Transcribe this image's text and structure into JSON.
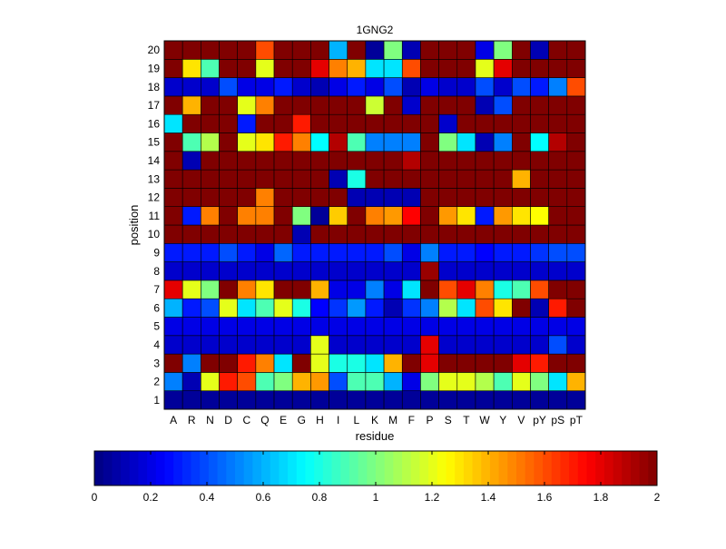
{
  "chart_data": {
    "type": "heatmap",
    "title": "1GNG2",
    "xlabel": "residue",
    "ylabel": "position",
    "x": [
      "A",
      "R",
      "N",
      "D",
      "C",
      "Q",
      "E",
      "G",
      "H",
      "I",
      "L",
      "K",
      "M",
      "F",
      "P",
      "S",
      "T",
      "W",
      "Y",
      "V",
      "pY",
      "pS",
      "pT"
    ],
    "y": [
      1,
      2,
      3,
      4,
      5,
      6,
      7,
      8,
      9,
      10,
      11,
      12,
      13,
      14,
      15,
      16,
      17,
      18,
      19,
      20
    ],
    "value_range": [
      0,
      2
    ],
    "colormap": "jet",
    "colorbar_ticks": [
      "0",
      "0.2",
      "0.4",
      "0.6",
      "0.8",
      "1",
      "1.2",
      "1.4",
      "1.6",
      "1.8",
      "2"
    ],
    "values": [
      [
        0.05,
        0.05,
        0.05,
        0.05,
        0.05,
        0.05,
        0.05,
        0.05,
        0.05,
        0.05,
        0.05,
        0.05,
        0.05,
        0.05,
        0.05,
        0.05,
        0.05,
        0.05,
        0.05,
        0.05,
        0.05,
        0.05,
        0.05
      ],
      [
        0.5,
        0.1,
        1.2,
        1.7,
        1.6,
        0.9,
        1.0,
        1.4,
        1.45,
        0.4,
        0.9,
        0.9,
        0.6,
        0.2,
        1.0,
        1.2,
        1.2,
        1.1,
        0.9,
        1.2,
        1.0,
        0.7,
        1.4
      ],
      [
        2.0,
        0.5,
        2.0,
        2.0,
        1.7,
        1.5,
        0.7,
        2.0,
        1.2,
        0.8,
        0.8,
        0.7,
        1.4,
        2.0,
        1.8,
        2.0,
        2.0,
        2.0,
        2.0,
        1.8,
        1.7,
        2.0,
        2.0
      ],
      [
        0.15,
        0.15,
        0.15,
        0.15,
        0.15,
        0.15,
        0.15,
        0.15,
        1.2,
        0.15,
        0.15,
        0.15,
        0.15,
        0.15,
        1.8,
        0.15,
        0.15,
        0.15,
        0.15,
        0.15,
        0.15,
        0.4,
        0.15
      ],
      [
        0.2,
        0.2,
        0.2,
        0.2,
        0.2,
        0.2,
        0.2,
        0.2,
        0.2,
        0.2,
        0.2,
        0.2,
        0.2,
        0.2,
        0.2,
        0.2,
        0.2,
        0.2,
        0.2,
        0.2,
        0.2,
        0.2,
        0.2
      ],
      [
        0.6,
        0.3,
        0.4,
        1.2,
        0.7,
        0.9,
        1.2,
        0.8,
        0.25,
        0.35,
        0.55,
        0.3,
        0.1,
        0.35,
        0.5,
        1.1,
        0.7,
        1.6,
        1.3,
        2.0,
        0.1,
        1.7,
        2.0
      ],
      [
        1.8,
        1.2,
        1.0,
        2.0,
        1.5,
        1.3,
        2.0,
        2.0,
        1.4,
        0.2,
        0.2,
        0.5,
        0.2,
        0.7,
        2.0,
        1.6,
        1.8,
        1.5,
        0.8,
        0.9,
        1.6,
        2.0,
        2.0
      ],
      [
        0.15,
        0.15,
        0.15,
        0.15,
        0.15,
        0.15,
        0.15,
        0.15,
        0.15,
        0.15,
        0.15,
        0.15,
        0.15,
        0.15,
        1.95,
        0.15,
        0.15,
        0.15,
        0.15,
        0.15,
        0.15,
        0.15,
        0.15
      ],
      [
        0.3,
        0.3,
        0.3,
        0.4,
        0.3,
        0.2,
        0.45,
        0.3,
        0.3,
        0.3,
        0.3,
        0.3,
        0.4,
        0.2,
        0.5,
        0.3,
        0.3,
        0.25,
        0.3,
        0.3,
        0.35,
        0.4,
        0.4
      ],
      [
        2.0,
        2.0,
        2.0,
        2.0,
        2.0,
        2.0,
        2.0,
        0.1,
        2.0,
        2.0,
        2.0,
        2.0,
        2.0,
        2.0,
        2.0,
        2.0,
        2.0,
        2.0,
        2.0,
        2.0,
        2.0,
        2.0,
        2.0
      ],
      [
        2.0,
        0.3,
        1.5,
        2.0,
        1.5,
        1.5,
        2.0,
        1.0,
        0.05,
        1.35,
        2.0,
        1.5,
        1.45,
        1.75,
        2.0,
        1.45,
        1.3,
        0.3,
        1.45,
        1.3,
        1.25,
        2.0,
        2.0
      ],
      [
        2.0,
        2.0,
        2.0,
        2.0,
        2.0,
        1.5,
        2.0,
        2.0,
        2.0,
        2.0,
        0.1,
        0.1,
        0.1,
        0.1,
        2.0,
        2.0,
        2.0,
        2.0,
        2.0,
        2.0,
        2.0,
        2.0,
        2.0
      ],
      [
        2.0,
        2.0,
        2.0,
        2.0,
        2.0,
        2.0,
        2.0,
        2.0,
        2.0,
        0.1,
        0.8,
        2.0,
        2.0,
        2.0,
        2.0,
        2.0,
        2.0,
        2.0,
        2.0,
        1.4,
        2.0,
        2.0,
        2.0
      ],
      [
        2.0,
        0.1,
        2.0,
        2.0,
        2.0,
        2.0,
        2.0,
        2.0,
        2.0,
        2.0,
        2.0,
        2.0,
        2.0,
        1.9,
        2.0,
        2.0,
        2.0,
        2.0,
        2.0,
        2.0,
        2.0,
        2.0,
        2.0
      ],
      [
        2.0,
        0.9,
        1.1,
        2.0,
        1.2,
        1.3,
        1.7,
        1.5,
        0.75,
        1.9,
        0.9,
        0.5,
        0.5,
        0.5,
        2.0,
        1.0,
        0.7,
        0.1,
        0.5,
        2.0,
        0.75,
        1.9,
        2.0
      ],
      [
        0.7,
        2.0,
        2.0,
        2.0,
        0.3,
        2.0,
        2.0,
        1.7,
        2.0,
        2.0,
        2.0,
        2.0,
        2.0,
        2.0,
        2.0,
        0.15,
        2.0,
        2.0,
        2.0,
        2.0,
        2.0,
        2.0,
        2.0
      ],
      [
        2.0,
        1.4,
        2.0,
        2.0,
        1.2,
        1.5,
        2.0,
        2.0,
        2.0,
        2.0,
        2.0,
        1.15,
        2.0,
        0.15,
        2.0,
        2.0,
        2.0,
        0.1,
        0.4,
        2.0,
        2.0,
        2.0,
        2.0
      ],
      [
        0.15,
        0.15,
        0.15,
        0.4,
        0.2,
        0.2,
        0.3,
        0.15,
        0.1,
        0.2,
        0.3,
        0.2,
        0.4,
        0.1,
        0.2,
        0.15,
        0.15,
        0.4,
        0.15,
        0.4,
        0.3,
        0.5,
        1.6
      ],
      [
        2.0,
        1.3,
        0.9,
        2.0,
        2.0,
        1.2,
        2.0,
        2.0,
        1.8,
        1.5,
        1.4,
        0.7,
        0.7,
        1.6,
        2.0,
        2.0,
        2.0,
        1.2,
        1.8,
        2.0,
        2.0,
        2.0,
        2.0
      ],
      [
        2.0,
        2.0,
        2.0,
        2.0,
        2.0,
        1.6,
        2.0,
        2.0,
        2.0,
        0.6,
        2.0,
        0.05,
        1.0,
        0.1,
        2.0,
        2.0,
        2.0,
        0.2,
        1.0,
        2.0,
        0.1,
        2.0,
        2.0
      ]
    ]
  }
}
